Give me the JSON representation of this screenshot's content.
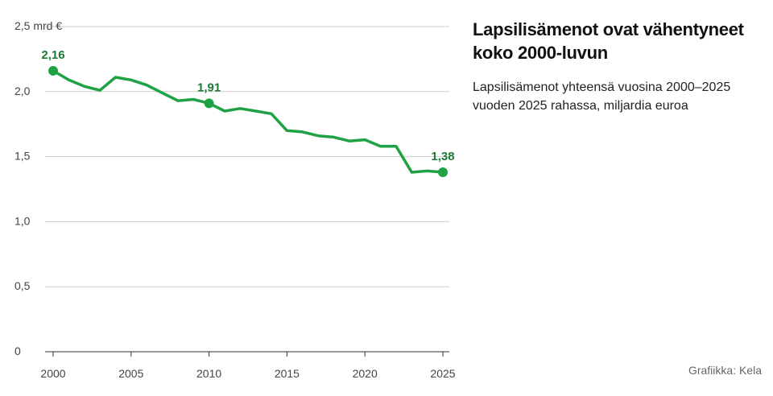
{
  "title": "Lapsilisämenot ovat vähentyneet koko 2000-luvun",
  "subtitle": "Lapsilisämenot yhteensä vuosina 2000–2025 vuoden 2025 rahassa, miljardia euroa",
  "source": "Grafiikka: Kela",
  "colors": {
    "line": "#1fa244",
    "label": "#1a7a36",
    "grid": "#cccccc",
    "axis": "#333333"
  },
  "chart_data": {
    "type": "line",
    "title": "Lapsilisämenot ovat vähentyneet koko 2000-luvun",
    "subtitle": "Lapsilisämenot yhteensä vuosina 2000–2025 vuoden 2025 rahassa, miljardia euroa",
    "xlabel": "",
    "ylabel": "",
    "y_unit": "mrd €",
    "ylim": [
      0,
      2.5
    ],
    "xlim": [
      2000,
      2025
    ],
    "grid": "horizontal",
    "y_ticks": [
      {
        "value": 0,
        "label": "0"
      },
      {
        "value": 0.5,
        "label": "0,5"
      },
      {
        "value": 1.0,
        "label": "1,0"
      },
      {
        "value": 1.5,
        "label": "1,5"
      },
      {
        "value": 2.0,
        "label": "2,0"
      },
      {
        "value": 2.5,
        "label": "2,5 mrd €"
      }
    ],
    "x_ticks": [
      {
        "value": 2000,
        "label": "2000"
      },
      {
        "value": 2005,
        "label": "2005"
      },
      {
        "value": 2010,
        "label": "2010"
      },
      {
        "value": 2015,
        "label": "2015"
      },
      {
        "value": 2020,
        "label": "2020"
      },
      {
        "value": 2025,
        "label": "2025"
      }
    ],
    "x": [
      2000,
      2001,
      2002,
      2003,
      2004,
      2005,
      2006,
      2007,
      2008,
      2009,
      2010,
      2011,
      2012,
      2013,
      2014,
      2015,
      2016,
      2017,
      2018,
      2019,
      2020,
      2021,
      2022,
      2023,
      2024,
      2025
    ],
    "series": [
      {
        "values": [
          2.16,
          2.09,
          2.04,
          2.01,
          2.11,
          2.09,
          2.05,
          1.99,
          1.93,
          1.94,
          1.91,
          1.85,
          1.87,
          1.85,
          1.83,
          1.7,
          1.69,
          1.66,
          1.65,
          1.62,
          1.63,
          1.58,
          1.58,
          1.38,
          1.39,
          1.38
        ]
      }
    ],
    "annotations": [
      {
        "x": 2000,
        "y": 2.16,
        "label": "2,16"
      },
      {
        "x": 2010,
        "y": 1.91,
        "label": "1,91"
      },
      {
        "x": 2025,
        "y": 1.38,
        "label": "1,38"
      }
    ]
  }
}
